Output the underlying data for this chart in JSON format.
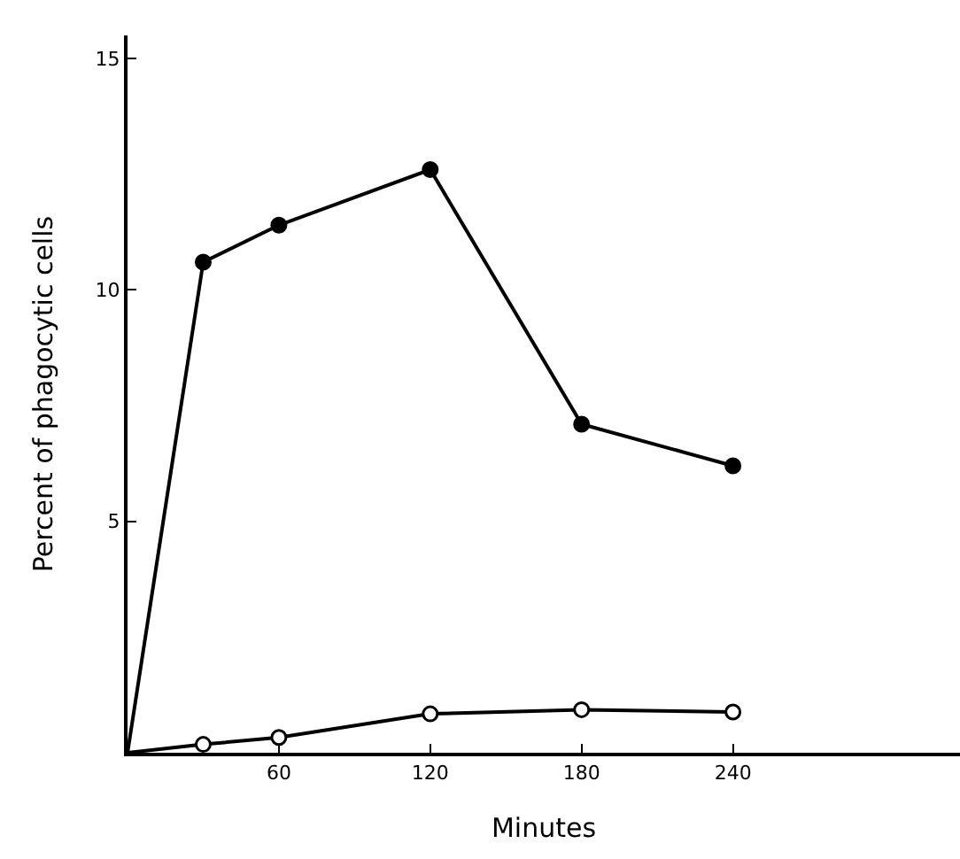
{
  "chart_data": {
    "type": "line",
    "xlabel": "Minutes",
    "ylabel": "Percent of phagocytic cells",
    "xlim": [
      0,
      330
    ],
    "ylim": [
      0,
      15.5
    ],
    "xticks": [
      60,
      120,
      180,
      240
    ],
    "yticks": [
      5,
      10,
      15
    ],
    "legend": false,
    "series": [
      {
        "color": "#000000",
        "marker": "circle",
        "x": [
          0,
          30,
          60,
          120,
          180,
          240
        ],
        "values": [
          0,
          10.6,
          11.4,
          12.6,
          7.1,
          6.2
        ]
      },
      {
        "color": "#000000",
        "marker": "circle-open",
        "x": [
          0,
          30,
          60,
          120,
          180,
          240
        ],
        "values": [
          0,
          0.18,
          0.33,
          0.84,
          0.93,
          0.88
        ]
      }
    ]
  }
}
